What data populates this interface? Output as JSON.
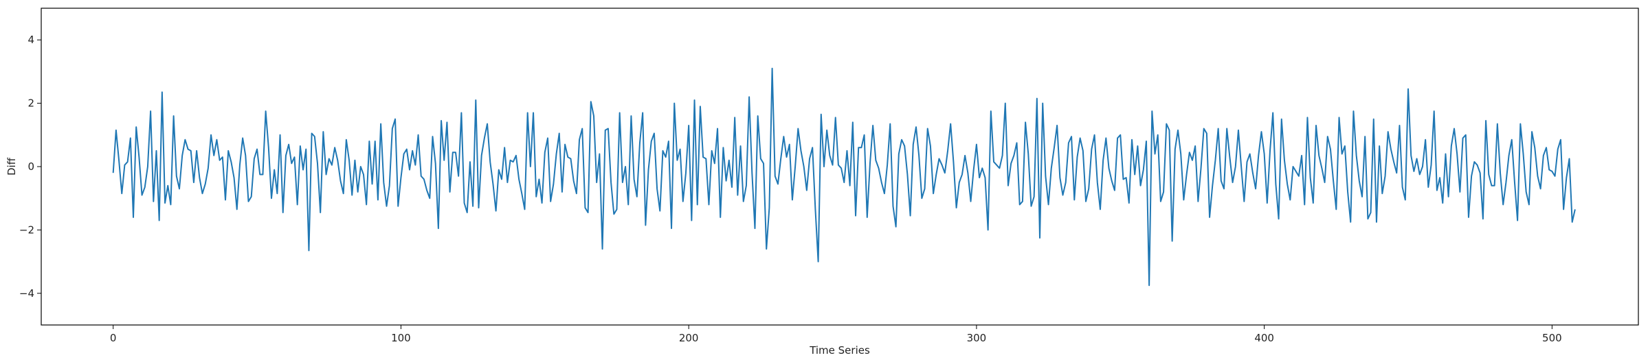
{
  "chart_data": {
    "type": "line",
    "title": "",
    "xlabel": "Time Series",
    "ylabel": "Diff",
    "xlim": [
      -25,
      530
    ],
    "ylim": [
      -5,
      5
    ],
    "xticks": [
      0,
      100,
      200,
      300,
      400,
      500
    ],
    "yticks": [
      -4,
      -2,
      0,
      2,
      4
    ],
    "xtick_labels": [
      "0",
      "100",
      "200",
      "300",
      "400",
      "500"
    ],
    "ytick_labels": [
      "−4",
      "−2",
      "0",
      "2",
      "4"
    ],
    "grid": false,
    "legend": "none",
    "series": [
      {
        "color": "#1f77b4",
        "x_start": 0,
        "x_step": 1,
        "values": [
          -0.2,
          1.15,
          0.2,
          -0.85,
          0.05,
          0.15,
          0.9,
          -1.6,
          1.25,
          0.3,
          -0.9,
          -0.65,
          0.0,
          1.75,
          -1.1,
          0.5,
          -1.7,
          2.35,
          -1.15,
          -0.6,
          -1.2,
          1.6,
          -0.3,
          -0.7,
          0.35,
          0.85,
          0.55,
          0.5,
          -0.5,
          0.5,
          -0.35,
          -0.85,
          -0.55,
          -0.05,
          1.0,
          0.35,
          0.85,
          0.2,
          0.3,
          -1.05,
          0.5,
          0.15,
          -0.35,
          -1.35,
          0.05,
          0.9,
          0.35,
          -1.1,
          -0.95,
          0.25,
          0.55,
          -0.25,
          -0.25,
          1.75,
          0.6,
          -1.0,
          -0.1,
          -0.85,
          1.0,
          -1.45,
          0.35,
          0.7,
          0.1,
          0.3,
          -1.2,
          0.65,
          -0.1,
          0.55,
          -2.65,
          1.05,
          0.95,
          0.1,
          -1.45,
          1.1,
          -0.25,
          0.25,
          0.05,
          0.6,
          0.2,
          -0.45,
          -0.85,
          0.85,
          0.2,
          -0.9,
          0.2,
          -0.8,
          0.0,
          -0.25,
          -1.2,
          0.8,
          -0.55,
          0.8,
          -1.05,
          1.35,
          -0.5,
          -1.25,
          -0.6,
          1.2,
          1.5,
          -1.25,
          -0.35,
          0.4,
          0.55,
          -0.1,
          0.5,
          0.05,
          1.0,
          -0.3,
          -0.4,
          -0.75,
          -1.0,
          0.95,
          0.1,
          -1.95,
          1.45,
          0.2,
          1.4,
          -0.8,
          0.45,
          0.45,
          -0.3,
          1.7,
          -1.15,
          -1.45,
          0.15,
          -1.25,
          2.1,
          -1.3,
          0.35,
          0.9,
          1.35,
          0.15,
          -0.55,
          -1.4,
          -0.1,
          -0.4,
          0.6,
          -0.5,
          0.2,
          0.15,
          0.35,
          -0.4,
          -0.85,
          -1.35,
          1.7,
          0.0,
          1.7,
          -0.95,
          -0.4,
          -1.15,
          0.45,
          0.9,
          -1.1,
          -0.55,
          0.4,
          1.05,
          -0.8,
          0.7,
          0.3,
          0.25,
          -0.45,
          -0.85,
          0.85,
          1.2,
          -1.3,
          -1.45,
          2.05,
          1.6,
          -0.5,
          0.4,
          -2.6,
          1.15,
          1.2,
          -0.5,
          -1.5,
          -1.35,
          1.7,
          -0.5,
          0.0,
          -1.2,
          1.6,
          -0.4,
          -0.95,
          0.75,
          1.7,
          -1.85,
          -0.1,
          0.8,
          1.05,
          -0.7,
          -1.4,
          0.5,
          0.3,
          0.8,
          -1.95,
          2.0,
          0.2,
          0.55,
          -1.1,
          -0.2,
          1.3,
          -1.7,
          2.1,
          -1.2,
          1.9,
          0.3,
          0.25,
          -1.2,
          0.5,
          0.1,
          1.2,
          -1.6,
          0.6,
          -0.45,
          0.2,
          -0.65,
          1.55,
          -0.9,
          0.65,
          -1.1,
          -0.6,
          2.2,
          -0.2,
          -1.95,
          1.6,
          0.25,
          0.1,
          -2.6,
          -1.3,
          3.1,
          -0.3,
          -0.55,
          0.25,
          0.95,
          0.3,
          0.7,
          -1.05,
          0.0,
          1.2,
          0.5,
          0.0,
          -0.75,
          0.25,
          0.6,
          -1.35,
          -3.0,
          1.65,
          0.0,
          1.15,
          0.35,
          0.05,
          1.55,
          0.05,
          -0.05,
          -0.5,
          0.5,
          -0.6,
          1.4,
          -1.55,
          0.6,
          0.6,
          1.0,
          -1.6,
          0.1,
          1.3,
          0.2,
          -0.05,
          -0.5,
          -0.85,
          0.05,
          1.35,
          -1.25,
          -1.9,
          0.4,
          0.85,
          0.65,
          -0.25,
          -1.55,
          0.7,
          1.25,
          0.35,
          -1.0,
          -0.7,
          1.2,
          0.65,
          -0.85,
          -0.25,
          0.25,
          0.05,
          -0.2,
          0.5,
          1.35,
          0.15,
          -1.3,
          -0.5,
          -0.25,
          0.35,
          -0.2,
          -1.1,
          -0.1,
          0.7,
          -0.35,
          -0.05,
          -0.35,
          -2.0,
          1.75,
          0.15,
          0.05,
          -0.05,
          0.35,
          2.0,
          -0.6,
          0.1,
          0.35,
          0.75,
          -1.2,
          -1.1,
          1.4,
          0.4,
          -1.25,
          -0.95,
          2.15,
          -2.25,
          2.0,
          -0.3,
          -1.2,
          -0.05,
          0.6,
          1.3,
          -0.35,
          -0.9,
          -0.5,
          0.75,
          0.95,
          -1.05,
          0.3,
          0.9,
          0.5,
          -1.1,
          -0.7,
          0.55,
          1.0,
          -0.5,
          -1.35,
          0.2,
          0.9,
          -0.05,
          -0.45,
          -0.75,
          0.9,
          1.0,
          -0.4,
          -0.35,
          -1.15,
          0.85,
          -0.25,
          0.65,
          -0.6,
          -0.1,
          0.8,
          -3.75,
          1.75,
          0.4,
          1.0,
          -1.1,
          -0.8,
          1.35,
          1.15,
          -2.35,
          0.55,
          1.15,
          0.4,
          -1.05,
          -0.25,
          0.45,
          0.2,
          0.65,
          -1.1,
          -0.05,
          1.2,
          1.05,
          -1.6,
          -0.6,
          0.2,
          1.2,
          -0.45,
          -0.7,
          1.2,
          0.3,
          -0.5,
          0.0,
          1.15,
          0.0,
          -1.1,
          0.15,
          0.4,
          -0.2,
          -0.7,
          0.35,
          1.1,
          0.4,
          -1.15,
          0.5,
          1.7,
          -0.55,
          -1.65,
          1.5,
          0.2,
          -0.55,
          -1.05,
          0.0,
          -0.15,
          -0.3,
          0.35,
          -1.2,
          1.55,
          -0.35,
          -1.15,
          1.3,
          0.35,
          -0.05,
          -0.5,
          0.95,
          0.55,
          -0.45,
          -1.35,
          1.55,
          0.4,
          0.65,
          -0.8,
          -1.75,
          1.75,
          0.35,
          -0.45,
          -0.95,
          0.95,
          -1.65,
          -1.45,
          1.5,
          -1.75,
          0.65,
          -0.85,
          -0.3,
          1.1,
          0.55,
          0.15,
          -0.2,
          1.3,
          -0.65,
          -1.05,
          2.45,
          0.35,
          -0.15,
          0.25,
          -0.25,
          0.0,
          0.85,
          -0.65,
          0.05,
          1.75,
          -0.75,
          -0.35,
          -1.15,
          0.4,
          -0.95,
          0.65,
          1.2,
          0.4,
          -0.8,
          0.9,
          1.0,
          -1.6,
          -0.3,
          0.15,
          0.05,
          -0.2,
          -1.65,
          1.45,
          -0.25,
          -0.6,
          -0.6,
          1.35,
          -0.2,
          -1.2,
          -0.5,
          0.35,
          0.85,
          -0.5,
          -1.7,
          1.35,
          0.4,
          -0.8,
          -1.2,
          1.1,
          0.6,
          -0.3,
          -0.7,
          0.35,
          0.6,
          -0.1,
          -0.15,
          -0.3,
          0.55,
          0.85,
          -1.35,
          -0.35,
          0.25,
          -1.75,
          -1.35
        ]
      }
    ]
  }
}
